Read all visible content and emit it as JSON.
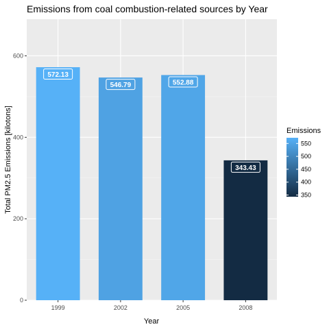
{
  "chart_data": {
    "type": "bar",
    "title": "Emissions from coal combustion-related sources by Year",
    "xlabel": "Year",
    "ylabel": "Total PM2.5 Emissions [kilotons]",
    "categories": [
      "1999",
      "2002",
      "2005",
      "2008"
    ],
    "values": [
      572.13,
      546.79,
      552.88,
      343.43
    ],
    "data_labels": [
      "572.13",
      "546.79",
      "552.88",
      "343.43"
    ],
    "ylim": [
      0,
      690
    ],
    "yticks": [
      0,
      200,
      400,
      600
    ],
    "ytick_labels": [
      "0",
      "200",
      "400",
      "600"
    ],
    "grid": true,
    "panel_background": "#ebebeb",
    "legend": {
      "title": "Emissions",
      "placement": "right",
      "type": "colorbar",
      "range": [
        343.43,
        572.13
      ],
      "ticks": [
        350,
        400,
        450,
        500,
        550
      ],
      "tick_labels": [
        "350",
        "400",
        "450",
        "500",
        "550"
      ],
      "low_color": "#132b43",
      "high_color": "#56b1f7"
    }
  }
}
